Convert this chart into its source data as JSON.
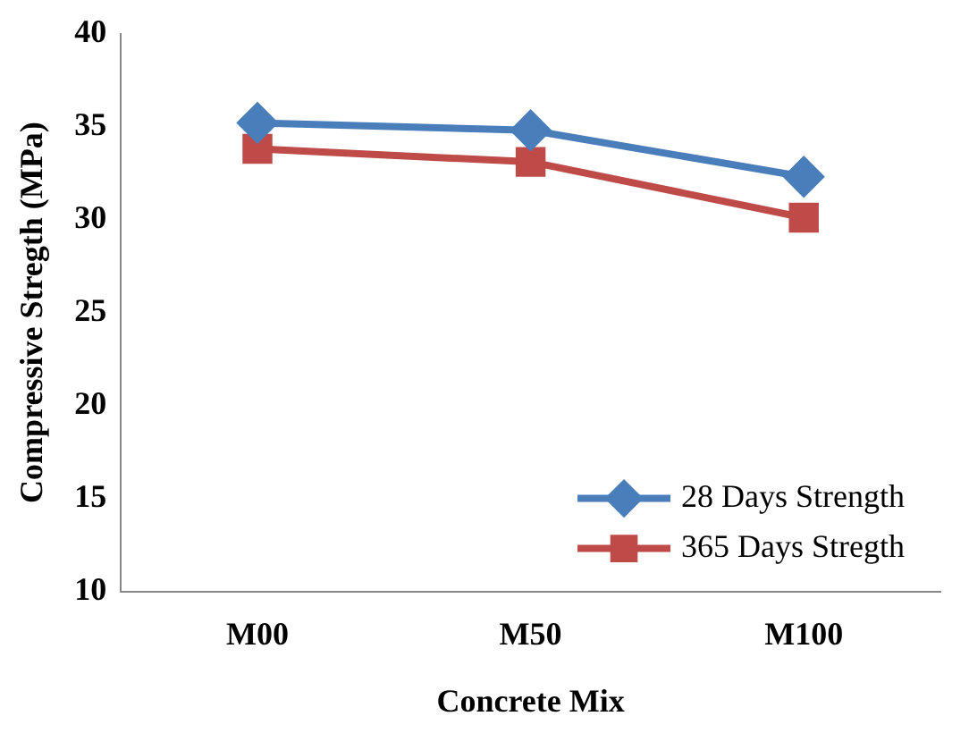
{
  "chart_data": {
    "type": "line",
    "xlabel": "Concrete Mix",
    "ylabel": "Compressive Stregth (MPa)",
    "categories": [
      "M00",
      "M50",
      "M100"
    ],
    "series": [
      {
        "name": "28 Days Strength",
        "color": "#4a7ebb",
        "marker": "diamond",
        "values": [
          35.2,
          34.8,
          32.3
        ]
      },
      {
        "name": "365 Days Stregth",
        "color": "#be4b48",
        "marker": "square",
        "values": [
          33.8,
          33.1,
          30.1
        ]
      }
    ],
    "ylim": [
      10,
      40
    ],
    "yticks": [
      10,
      15,
      20,
      25,
      30,
      35,
      40
    ],
    "grid": false,
    "legend": "bottom right"
  }
}
